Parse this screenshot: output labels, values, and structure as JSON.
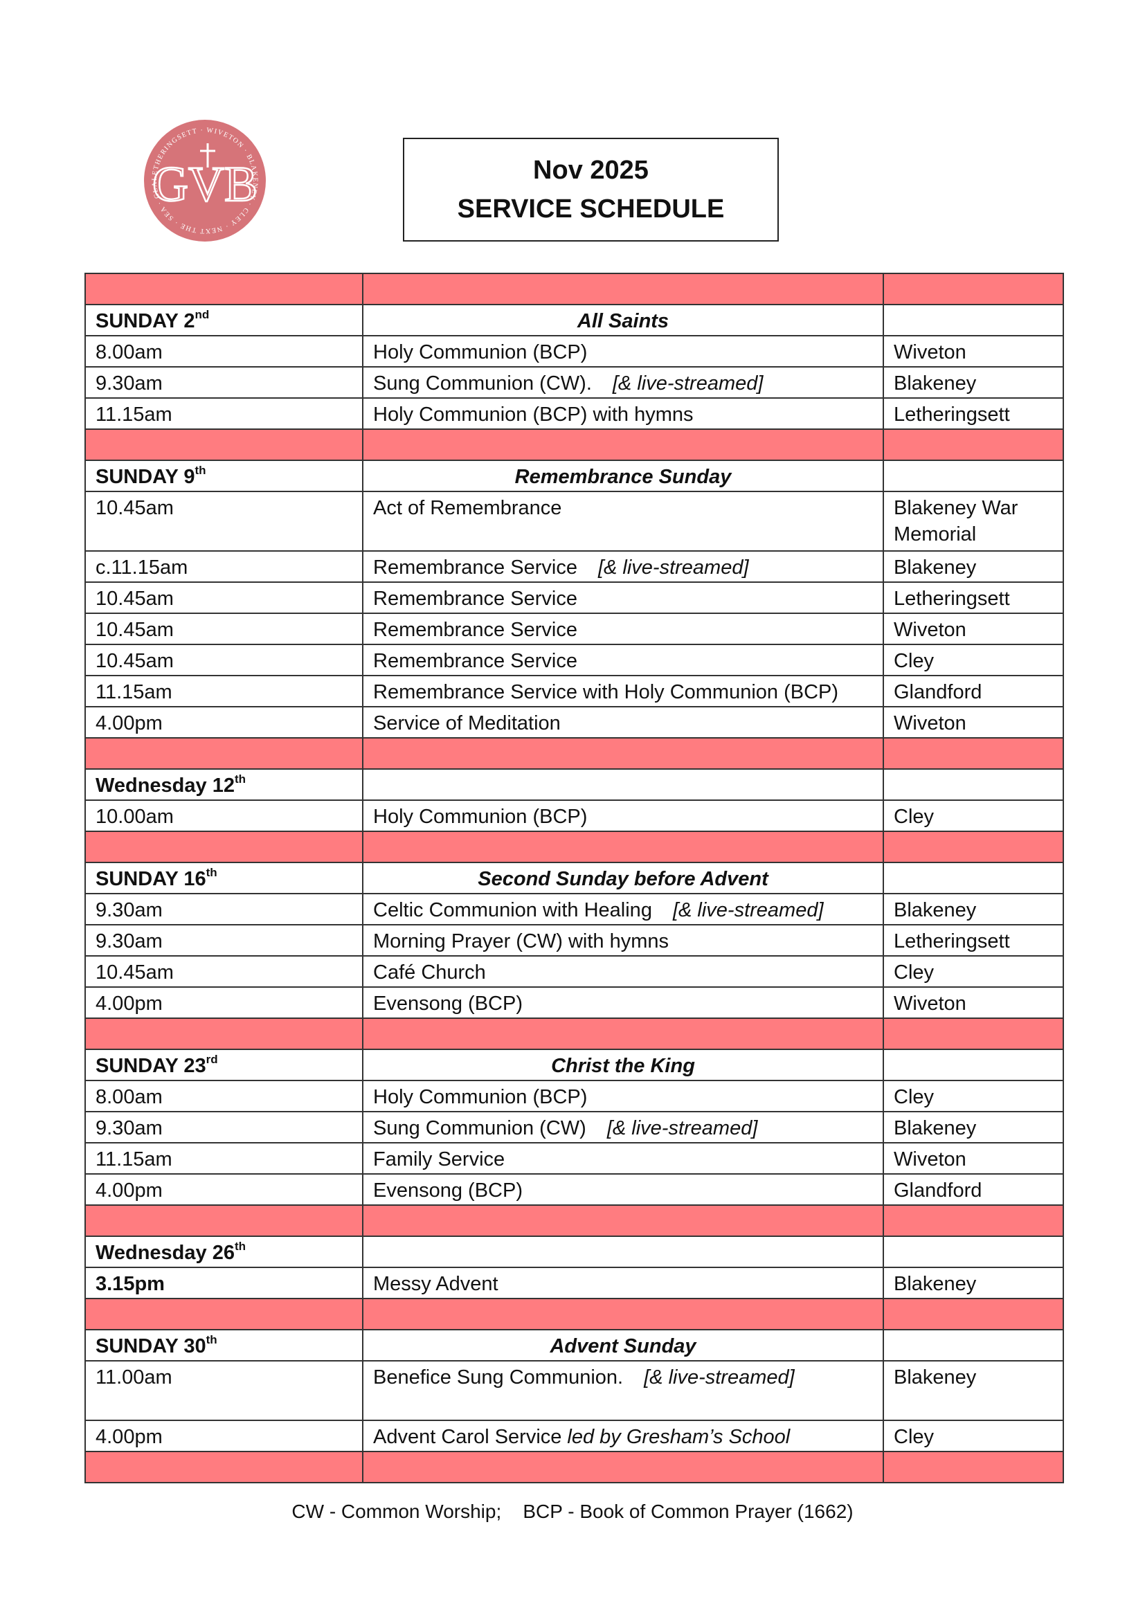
{
  "logo": {
    "letters": "GVB",
    "ring_text": "WIVETON · BLAKENEY · CLEY NEXT THE SEA · GLANDFORD · LETHERINGSETT",
    "color": "#d67479"
  },
  "title": {
    "line1": "Nov 2025",
    "line2": "SERVICE SCHEDULE"
  },
  "colors": {
    "separator": "#ff7c80"
  },
  "rows": [
    {
      "type": "pink"
    },
    {
      "type": "header",
      "day": "SUNDAY 2",
      "suffix": "nd",
      "occasion": "All Saints"
    },
    {
      "type": "service",
      "time": "8.00am",
      "service": "Holy Communion (BCP)",
      "place": "Wiveton"
    },
    {
      "type": "service",
      "time": "9.30am",
      "service": "Sung Communion (CW).",
      "note": "[& live-streamed]",
      "place": "Blakeney"
    },
    {
      "type": "service",
      "time": "11.15am",
      "service": "Holy Communion (BCP) with hymns",
      "place": "Letheringsett"
    },
    {
      "type": "pink"
    },
    {
      "type": "header",
      "day": "SUNDAY 9",
      "suffix": "th",
      "occasion": "Remembrance Sunday"
    },
    {
      "type": "service",
      "time": "10.45am",
      "service": "Act of Remembrance",
      "place": "Blakeney War Memorial",
      "tall": true
    },
    {
      "type": "service",
      "time": "c.11.15am",
      "service": "Remembrance Service",
      "note": "[& live-streamed]",
      "place": "Blakeney"
    },
    {
      "type": "service",
      "time": "10.45am",
      "service": "Remembrance Service",
      "place": "Letheringsett"
    },
    {
      "type": "service",
      "time": "10.45am",
      "service": "Remembrance Service",
      "place": "Wiveton"
    },
    {
      "type": "service",
      "time": "10.45am",
      "service": "Remembrance Service",
      "place": "Cley"
    },
    {
      "type": "service",
      "time": "11.15am",
      "service": "Remembrance Service with Holy Communion (BCP)",
      "place": "Glandford"
    },
    {
      "type": "service",
      "time": "4.00pm",
      "service": "Service of Meditation",
      "place": "Wiveton"
    },
    {
      "type": "pink"
    },
    {
      "type": "header",
      "day": "Wednesday 12",
      "suffix": "th",
      "occasion": ""
    },
    {
      "type": "service",
      "time": "10.00am",
      "service": "Holy Communion (BCP)",
      "place": "Cley"
    },
    {
      "type": "pink"
    },
    {
      "type": "header",
      "day": "SUNDAY 16",
      "suffix": "th",
      "occasion": "Second Sunday before Advent"
    },
    {
      "type": "service",
      "time": "9.30am",
      "service": "Celtic Communion with Healing",
      "note": "[& live-streamed]",
      "place": "Blakeney"
    },
    {
      "type": "service",
      "time": "9.30am",
      "service": "Morning Prayer (CW) with hymns",
      "place": "Letheringsett"
    },
    {
      "type": "service",
      "time": "10.45am",
      "service": "Café Church",
      "place": "Cley"
    },
    {
      "type": "service",
      "time": "4.00pm",
      "service": "Evensong (BCP)",
      "place": "Wiveton"
    },
    {
      "type": "pink"
    },
    {
      "type": "header",
      "day": "SUNDAY 23",
      "suffix": "rd",
      "occasion": "Christ the King"
    },
    {
      "type": "service",
      "time": "8.00am",
      "service": "Holy Communion (BCP)",
      "place": "Cley"
    },
    {
      "type": "service",
      "time": "9.30am",
      "service": "Sung Communion (CW)",
      "note": "[& live-streamed]",
      "place": "Blakeney"
    },
    {
      "type": "service",
      "time": "11.15am",
      "service": "Family Service",
      "place": "Wiveton"
    },
    {
      "type": "service",
      "time": "4.00pm",
      "service": "Evensong (BCP)",
      "place": "Glandford"
    },
    {
      "type": "pink"
    },
    {
      "type": "header",
      "day": "Wednesday 26",
      "suffix": "th",
      "occasion": ""
    },
    {
      "type": "service",
      "time": "3.15pm",
      "time_bold": true,
      "service": "Messy Advent",
      "place": "Blakeney"
    },
    {
      "type": "pink"
    },
    {
      "type": "header",
      "day": "SUNDAY 30",
      "suffix": "th",
      "occasion": "Advent Sunday"
    },
    {
      "type": "service",
      "time": "11.00am",
      "service": "Benefice Sung Communion.",
      "note": "[& live-streamed]",
      "place": "Blakeney",
      "tall": true
    },
    {
      "type": "service",
      "time": "4.00pm",
      "service": "Advent Carol Service",
      "note": "led by Gresham’s School",
      "note_tight": true,
      "place": "Cley"
    },
    {
      "type": "pink"
    }
  ],
  "footer": "CW - Common Worship;    BCP - Book of Common Prayer (1662)"
}
